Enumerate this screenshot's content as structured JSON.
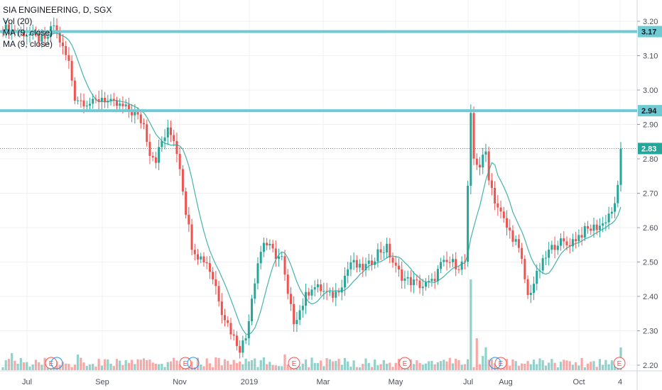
{
  "chart_data": {
    "type": "candlestick",
    "title": "SIA ENGINEERING, D, SGX",
    "indicators": [
      "Vol (20)",
      "MA (9, close)",
      "MA (9, close)"
    ],
    "ylim": [
      2.15,
      3.25
    ],
    "y_ticks": [
      "3.20",
      "3.10",
      "3.00",
      "2.90",
      "2.80",
      "2.70",
      "2.60",
      "2.50",
      "2.40",
      "2.30",
      "2.20"
    ],
    "x_tick_labels": [
      "Jul",
      "Sep",
      "Nov",
      "2019",
      "Mar",
      "May",
      "Jul",
      "Aug",
      "Oct",
      "4"
    ],
    "horizontal_levels": [
      {
        "value": 3.17,
        "label": "3.17"
      },
      {
        "value": 2.94,
        "label": "2.94"
      }
    ],
    "last_price": {
      "value": 2.83,
      "label": "2.83"
    },
    "earnings_markers": [
      "E",
      "E",
      "E",
      "E",
      "E",
      "E",
      "E"
    ],
    "price_path": [
      [
        0,
        3.18
      ],
      [
        10,
        3.16
      ],
      [
        14,
        3.14
      ],
      [
        17,
        3.19
      ],
      [
        20,
        3.12
      ],
      [
        22,
        3.08
      ],
      [
        24,
        2.98
      ],
      [
        26,
        2.97
      ],
      [
        30,
        2.96
      ],
      [
        33,
        2.98
      ],
      [
        36,
        2.96
      ],
      [
        40,
        2.95
      ],
      [
        44,
        2.93
      ],
      [
        47,
        2.9
      ],
      [
        49,
        2.82
      ],
      [
        51,
        2.8
      ],
      [
        53,
        2.85
      ],
      [
        55,
        2.88
      ],
      [
        57,
        2.86
      ],
      [
        59,
        2.78
      ],
      [
        61,
        2.65
      ],
      [
        63,
        2.55
      ],
      [
        65,
        2.52
      ],
      [
        68,
        2.5
      ],
      [
        71,
        2.43
      ],
      [
        73,
        2.36
      ],
      [
        75,
        2.32
      ],
      [
        77,
        2.28
      ],
      [
        79,
        2.25
      ],
      [
        81,
        2.28
      ],
      [
        83,
        2.4
      ],
      [
        85,
        2.5
      ],
      [
        87,
        2.56
      ],
      [
        89,
        2.54
      ],
      [
        91,
        2.52
      ],
      [
        93,
        2.51
      ],
      [
        95,
        2.4
      ],
      [
        97,
        2.33
      ],
      [
        99,
        2.36
      ],
      [
        101,
        2.4
      ],
      [
        103,
        2.43
      ],
      [
        106,
        2.42
      ],
      [
        109,
        2.4
      ],
      [
        111,
        2.41
      ],
      [
        113,
        2.44
      ],
      [
        116,
        2.5
      ],
      [
        119,
        2.48
      ],
      [
        122,
        2.49
      ],
      [
        125,
        2.53
      ],
      [
        128,
        2.54
      ],
      [
        131,
        2.48
      ],
      [
        134,
        2.45
      ],
      [
        137,
        2.44
      ],
      [
        140,
        2.43
      ],
      [
        143,
        2.44
      ],
      [
        146,
        2.49
      ],
      [
        149,
        2.5
      ],
      [
        152,
        2.49
      ],
      [
        154,
        2.5
      ],
      [
        156,
        2.92
      ],
      [
        157,
        2.8
      ],
      [
        159,
        2.78
      ],
      [
        161,
        2.82
      ],
      [
        162,
        2.75
      ],
      [
        164,
        2.68
      ],
      [
        166,
        2.64
      ],
      [
        168,
        2.6
      ],
      [
        171,
        2.56
      ],
      [
        173,
        2.5
      ],
      [
        175,
        2.4
      ],
      [
        177,
        2.44
      ],
      [
        179,
        2.48
      ],
      [
        182,
        2.53
      ],
      [
        185,
        2.56
      ],
      [
        188,
        2.55
      ],
      [
        191,
        2.57
      ],
      [
        194,
        2.59
      ],
      [
        197,
        2.6
      ],
      [
        200,
        2.61
      ],
      [
        202,
        2.64
      ],
      [
        204,
        2.66
      ],
      [
        205,
        2.72
      ],
      [
        206,
        2.83
      ]
    ]
  }
}
